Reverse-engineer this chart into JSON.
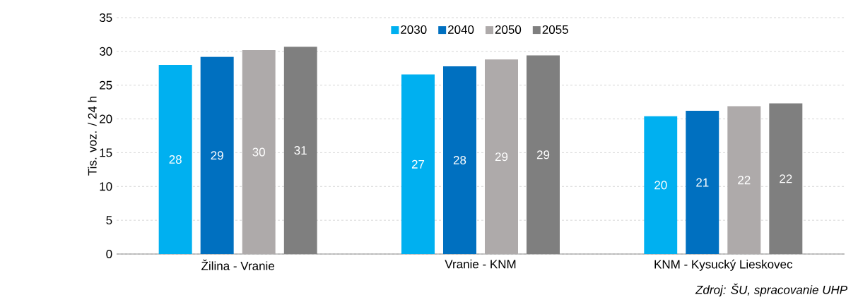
{
  "chart_data": {
    "type": "bar",
    "ylabel": "Tis. voz. / 24 h",
    "categories": [
      "Žilina - Vranie",
      "Vranie - KNM",
      "KNM - Kysucký Lieskovec"
    ],
    "series": [
      {
        "name": "2030",
        "color": "#00b0f0",
        "values": [
          28.0,
          26.6,
          20.4
        ],
        "value_labels": [
          "28",
          "27",
          "20"
        ]
      },
      {
        "name": "2040",
        "color": "#0070c0",
        "values": [
          29.2,
          27.8,
          21.2
        ],
        "value_labels": [
          "29",
          "28",
          "21"
        ]
      },
      {
        "name": "2050",
        "color": "#aeaaaa",
        "values": [
          30.2,
          28.8,
          21.9
        ],
        "value_labels": [
          "30",
          "29",
          "22"
        ]
      },
      {
        "name": "2055",
        "color": "#7f7f7f",
        "values": [
          30.7,
          29.4,
          22.3
        ],
        "value_labels": [
          "31",
          "29",
          "22"
        ]
      }
    ],
    "ylim": [
      0,
      35
    ],
    "yticks": [
      0,
      5,
      10,
      15,
      20,
      25,
      30,
      35
    ],
    "grid": "y",
    "legend": "top",
    "annotations": [
      "Zdroj: ŠU, spracovanie UHP"
    ]
  }
}
